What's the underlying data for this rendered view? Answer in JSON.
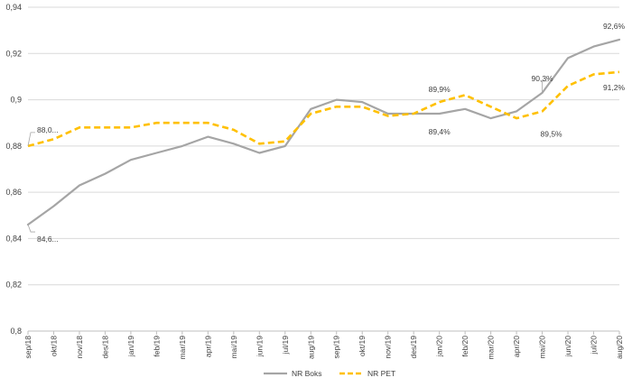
{
  "chart_data": {
    "type": "line",
    "categories": [
      "sep/18",
      "okt/18",
      "nov/18",
      "des/18",
      "jan/19",
      "feb/19",
      "mar/19",
      "apr/19",
      "mai/19",
      "jun/19",
      "jul/19",
      "aug/19",
      "sep/19",
      "okt/19",
      "nov/19",
      "des/19",
      "jan/20",
      "feb/20",
      "mar/20",
      "apr/20",
      "mai/20",
      "jun/20",
      "jul/20",
      "aug/20"
    ],
    "series": [
      {
        "name": "NR Boks",
        "color": "#a5a5a5",
        "dash": "solid",
        "values": [
          0.846,
          0.854,
          0.863,
          0.868,
          0.874,
          0.877,
          0.88,
          0.884,
          0.881,
          0.877,
          0.88,
          0.896,
          0.9,
          0.899,
          0.894,
          0.894,
          0.894,
          0.896,
          0.892,
          0.895,
          0.903,
          0.918,
          0.923,
          0.926
        ]
      },
      {
        "name": "NR PET",
        "color": "#ffc000",
        "dash": "dashed",
        "values": [
          0.88,
          0.883,
          0.888,
          0.888,
          0.888,
          0.89,
          0.89,
          0.89,
          0.887,
          0.881,
          0.882,
          0.894,
          0.897,
          0.897,
          0.893,
          0.894,
          0.899,
          0.902,
          0.897,
          0.892,
          0.895,
          0.906,
          0.911,
          0.912
        ]
      }
    ],
    "y_ticks": [
      "0,8",
      "0,82",
      "0,84",
      "0,86",
      "0,88",
      "0,9",
      "0,92",
      "0,94"
    ],
    "ylim": [
      0.8,
      0.94
    ],
    "grid": true,
    "legend_position": "bottom",
    "annotations": [
      {
        "text": "88,0...",
        "series": 1,
        "index": 0
      },
      {
        "text": "84,6...",
        "series": 0,
        "index": 0
      },
      {
        "text": "89,9%",
        "series": 1,
        "index": 16
      },
      {
        "text": "89,4%",
        "series": 0,
        "index": 16
      },
      {
        "text": "90,3%",
        "series": 0,
        "index": 20
      },
      {
        "text": "89,5%",
        "series": 1,
        "index": 20
      },
      {
        "text": "92,6%",
        "series": 0,
        "index": 23
      },
      {
        "text": "91,2%",
        "series": 1,
        "index": 23
      }
    ],
    "title": "",
    "xlabel": "",
    "ylabel": ""
  }
}
